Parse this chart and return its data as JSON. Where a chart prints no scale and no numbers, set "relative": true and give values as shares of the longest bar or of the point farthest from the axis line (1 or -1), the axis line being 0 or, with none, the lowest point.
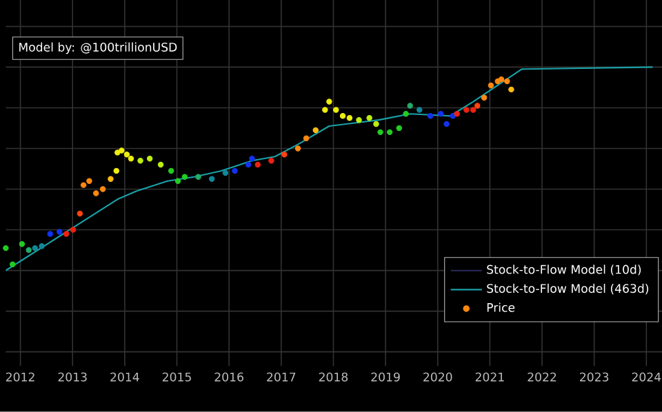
{
  "chart_data": {
    "type": "scatter",
    "relative": true,
    "annotations": [
      "Model by: @100trillionUSD"
    ],
    "xlim": [
      2011.72,
      2024.3
    ],
    "xticks": [
      2012,
      2013,
      2014,
      2015,
      2016,
      2017,
      2018,
      2019,
      2020,
      2021,
      2022,
      2023,
      2024
    ],
    "grid": true,
    "legend": "bottom right",
    "series": [
      {
        "name": "Stock-to-Flow Model (10d)",
        "type": "line",
        "color": "#2a2a5a"
      },
      {
        "name": "Stock-to-Flow Model (463d)",
        "type": "line",
        "color": "#1aa0a8",
        "x": [
          2011.72,
          2013.86,
          2014.22,
          2014.82,
          2015.33,
          2015.85,
          2016.44,
          2016.88,
          2017.32,
          2017.92,
          2018.87,
          2019.47,
          2020.24,
          2020.68,
          2021.61,
          2024.12
        ],
        "values": [
          0,
          0.35,
          0.39,
          0.44,
          0.46,
          0.49,
          0.54,
          0.56,
          0.62,
          0.71,
          0.74,
          0.77,
          0.76,
          0.83,
          0.99,
          1.0
        ]
      },
      {
        "name": "Price",
        "color": "#ff8811",
        "x": [
          2011.72,
          2011.85,
          2012.03,
          2012.16,
          2012.28,
          2012.41,
          2012.57,
          2012.75,
          2012.88,
          2013.01,
          2013.14,
          2013.21,
          2013.32,
          2013.45,
          2013.58,
          2013.73,
          2013.84,
          2013.86,
          2013.94,
          2014.04,
          2014.12,
          2014.3,
          2014.48,
          2014.69,
          2014.89,
          2015.02,
          2015.15,
          2015.41,
          2015.67,
          2015.93,
          2016.11,
          2016.37,
          2016.44,
          2016.55,
          2016.81,
          2017.06,
          2017.32,
          2017.48,
          2017.66,
          2017.84,
          2017.92,
          2018.05,
          2018.18,
          2018.31,
          2018.49,
          2018.69,
          2018.82,
          2018.9,
          2019.08,
          2019.26,
          2019.39,
          2019.47,
          2019.65,
          2019.86,
          2020.06,
          2020.17,
          2020.29,
          2020.37,
          2020.55,
          2020.68,
          2020.76,
          2020.89,
          2021.02,
          2021.15,
          2021.22,
          2021.33,
          2021.41
        ],
        "values": [
          0.11,
          0.03,
          0.13,
          0.1,
          0.11,
          0.12,
          0.18,
          0.19,
          0.18,
          0.2,
          0.28,
          0.42,
          0.44,
          0.38,
          0.4,
          0.45,
          0.49,
          0.58,
          0.59,
          0.57,
          0.55,
          0.54,
          0.55,
          0.52,
          0.49,
          0.44,
          0.46,
          0.46,
          0.45,
          0.48,
          0.49,
          0.52,
          0.55,
          0.52,
          0.54,
          0.57,
          0.6,
          0.65,
          0.69,
          0.79,
          0.83,
          0.79,
          0.76,
          0.75,
          0.74,
          0.75,
          0.72,
          0.68,
          0.68,
          0.7,
          0.77,
          0.81,
          0.79,
          0.76,
          0.77,
          0.72,
          0.76,
          0.77,
          0.79,
          0.79,
          0.81,
          0.85,
          0.91,
          0.93,
          0.94,
          0.93,
          0.89
        ],
        "colors": [
          "#22cc22",
          "#22cc22",
          "#22cc22",
          "#22aa66",
          "#118899",
          "#118899",
          "#1133ee",
          "#1133ee",
          "#ee2211",
          "#ee2211",
          "#ff4411",
          "#ff8811",
          "#ff8811",
          "#ff8811",
          "#ff8811",
          "#ffbb11",
          "#eeee11",
          "#eeee11",
          "#eeee11",
          "#eeee11",
          "#eeee11",
          "#bbee11",
          "#bbee11",
          "#bbee11",
          "#22cc22",
          "#22cc22",
          "#22cc22",
          "#22aa66",
          "#118899",
          "#118899",
          "#1133ee",
          "#1133ee",
          "#1133ee",
          "#ee2211",
          "#ee2211",
          "#ff4411",
          "#ff8811",
          "#ff8811",
          "#ffbb11",
          "#eeee11",
          "#eeee11",
          "#eeee11",
          "#eeee11",
          "#eeee11",
          "#bbee11",
          "#bbee11",
          "#bbee11",
          "#22cc22",
          "#22cc22",
          "#22cc22",
          "#22cc22",
          "#22aa66",
          "#118899",
          "#1133ee",
          "#1133ee",
          "#1133ee",
          "#1133ee",
          "#ee2211",
          "#ee2211",
          "#ee2211",
          "#ff4411",
          "#ff8811",
          "#ff8811",
          "#ff8811",
          "#ff8811",
          "#ff8811",
          "#ffbb11"
        ]
      }
    ]
  }
}
